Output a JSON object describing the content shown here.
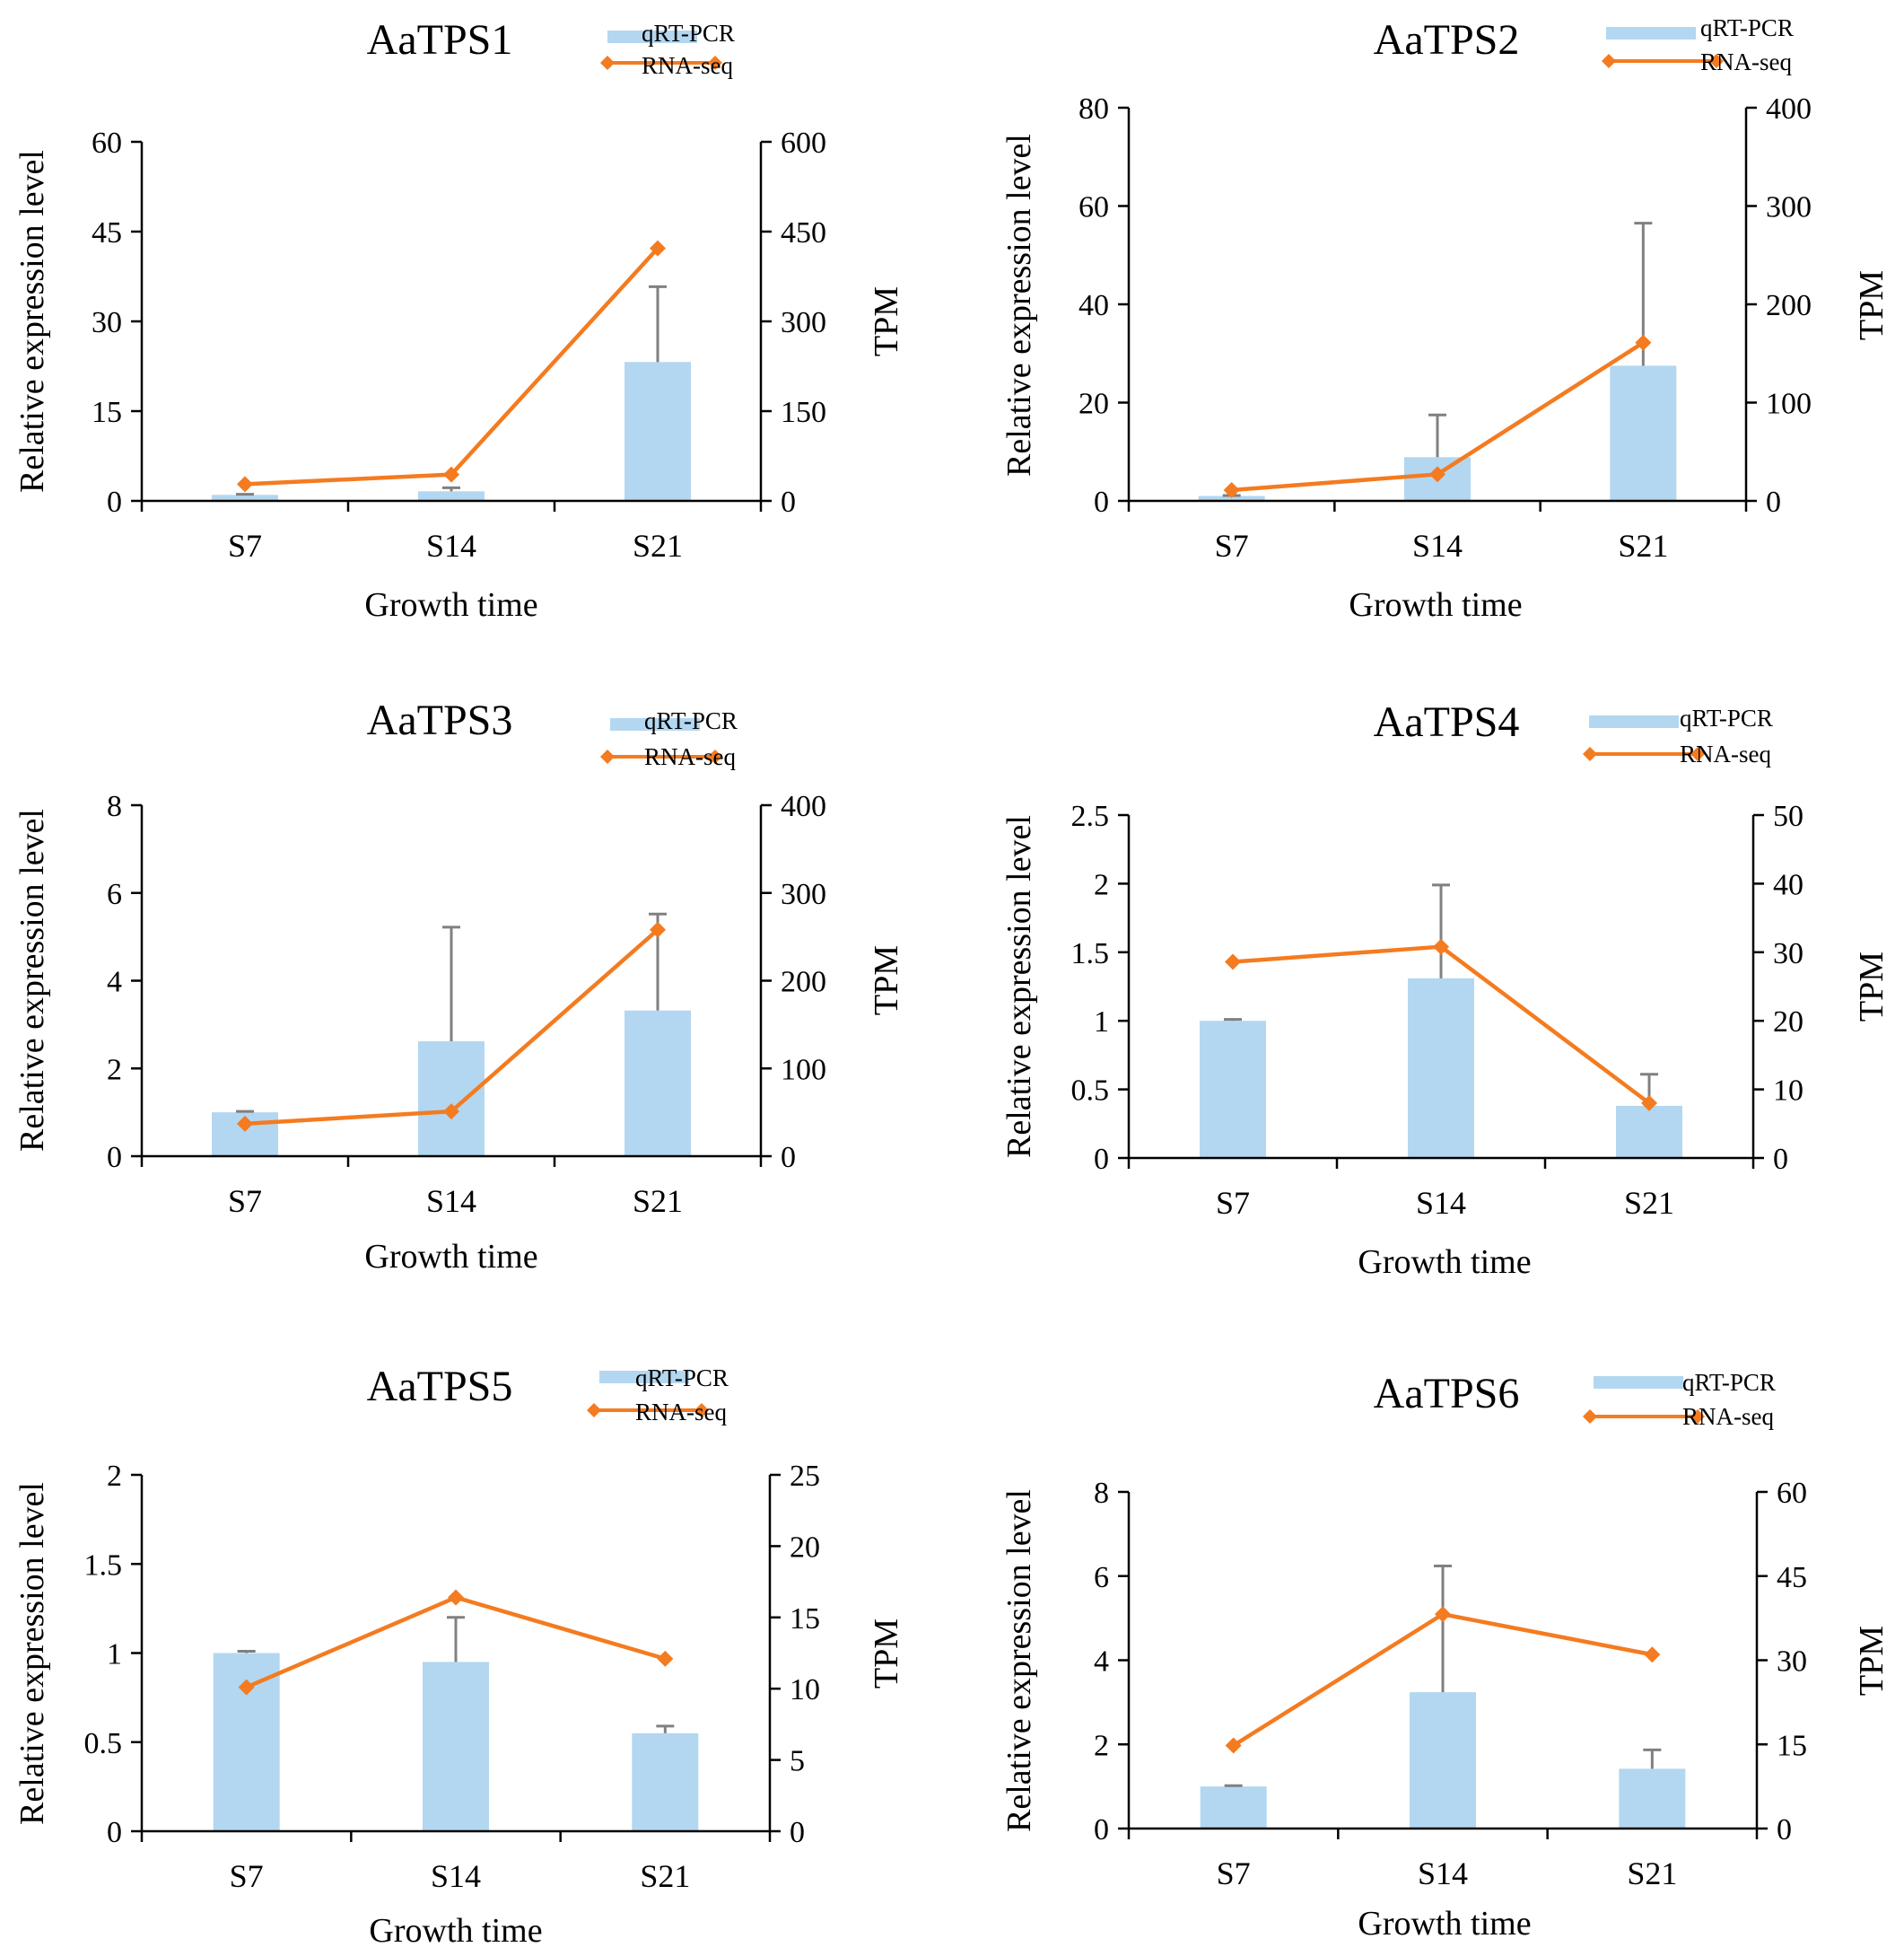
{
  "figure": {
    "colors": {
      "bar": "#b3d7f0",
      "line": "#f47b20",
      "axis": "#000000",
      "error": "#808080"
    }
  },
  "chart_data": [
    {
      "type": "bar",
      "title": "AaTPS1",
      "categories": [
        "S7",
        "S14",
        "S21"
      ],
      "xlabel": "Growth time",
      "ylabel": "Relative expression level",
      "y2label": "TPM",
      "ylim": [
        0,
        60
      ],
      "yticks": [
        "0",
        "15",
        "30",
        "45",
        "60"
      ],
      "y2lim": [
        0,
        600
      ],
      "y2ticks": [
        "0",
        "150",
        "300",
        "450",
        "600"
      ],
      "legend": {
        "bar": "qRT-PCR",
        "line": "RNA-seq"
      },
      "series": [
        {
          "name": "qRT-PCR",
          "kind": "bar",
          "axis": "left",
          "values": [
            1.0,
            1.6,
            23.2
          ],
          "errors": [
            0.1,
            0.6,
            12.6
          ]
        },
        {
          "name": "RNA-seq",
          "kind": "line",
          "axis": "right",
          "values": [
            28,
            44,
            422
          ]
        }
      ]
    },
    {
      "type": "bar",
      "title": "AaTPS2",
      "categories": [
        "S7",
        "S14",
        "S21"
      ],
      "xlabel": "Growth time",
      "ylabel": "Relative expression level",
      "y2label": "TPM",
      "ylim": [
        0,
        80
      ],
      "yticks": [
        "0",
        "20",
        "40",
        "60",
        "80"
      ],
      "y2lim": [
        0,
        400
      ],
      "y2ticks": [
        "0",
        "100",
        "200",
        "300",
        "400"
      ],
      "legend": {
        "bar": "qRT-PCR",
        "line": "RNA-seq"
      },
      "series": [
        {
          "name": "qRT-PCR",
          "kind": "bar",
          "axis": "left",
          "values": [
            1.0,
            8.9,
            27.5
          ],
          "errors": [
            0.1,
            8.6,
            29.0
          ]
        },
        {
          "name": "RNA-seq",
          "kind": "line",
          "axis": "right",
          "values": [
            11,
            27,
            161
          ]
        }
      ]
    },
    {
      "type": "bar",
      "title": "AaTPS3",
      "categories": [
        "S7",
        "S14",
        "S21"
      ],
      "xlabel": "Growth time",
      "ylabel": "Relative expression level",
      "y2label": "TPM",
      "ylim": [
        0,
        8
      ],
      "yticks": [
        "0",
        "2",
        "4",
        "6",
        "8"
      ],
      "y2lim": [
        0,
        400
      ],
      "y2ticks": [
        "0",
        "100",
        "200",
        "300",
        "400"
      ],
      "legend": {
        "bar": "qRT-PCR",
        "line": "RNA-seq"
      },
      "series": [
        {
          "name": "qRT-PCR",
          "kind": "bar",
          "axis": "left",
          "values": [
            1.0,
            2.62,
            3.32
          ],
          "errors": [
            0.02,
            2.6,
            2.2
          ]
        },
        {
          "name": "RNA-seq",
          "kind": "line",
          "axis": "right",
          "values": [
            37,
            51,
            258
          ]
        }
      ]
    },
    {
      "type": "bar",
      "title": "AaTPS4",
      "categories": [
        "S7",
        "S14",
        "S21"
      ],
      "xlabel": "Growth time",
      "ylabel": "Relative expression level",
      "y2label": "TPM",
      "ylim": [
        0,
        2.5
      ],
      "yticks": [
        "0",
        "0.5",
        "1",
        "1.5",
        "2",
        "2.5"
      ],
      "y2lim": [
        0,
        50
      ],
      "y2ticks": [
        "0",
        "10",
        "20",
        "30",
        "40",
        "50"
      ],
      "legend": {
        "bar": "qRT-PCR",
        "line": "RNA-seq"
      },
      "series": [
        {
          "name": "qRT-PCR",
          "kind": "bar",
          "axis": "left",
          "values": [
            1.0,
            1.31,
            0.38
          ],
          "errors": [
            0.01,
            0.68,
            0.23
          ]
        },
        {
          "name": "RNA-seq",
          "kind": "line",
          "axis": "right",
          "values": [
            28.6,
            30.8,
            8.0
          ]
        }
      ]
    },
    {
      "type": "bar",
      "title": "AaTPS5",
      "categories": [
        "S7",
        "S14",
        "S21"
      ],
      "xlabel": "Growth time",
      "ylabel": "Relative expression level",
      "y2label": "TPM",
      "ylim": [
        0,
        2
      ],
      "yticks": [
        "0",
        "0.5",
        "1",
        "1.5",
        "2"
      ],
      "y2lim": [
        0,
        25
      ],
      "y2ticks": [
        "0",
        "5",
        "10",
        "15",
        "20",
        "25"
      ],
      "legend": {
        "bar": "qRT-PCR",
        "line": "RNA-seq"
      },
      "series": [
        {
          "name": "qRT-PCR",
          "kind": "bar",
          "axis": "left",
          "values": [
            1.0,
            0.95,
            0.55
          ],
          "errors": [
            0.01,
            0.25,
            0.04
          ]
        },
        {
          "name": "RNA-seq",
          "kind": "line",
          "axis": "right",
          "values": [
            10.1,
            16.4,
            12.1
          ]
        }
      ]
    },
    {
      "type": "bar",
      "title": "AaTPS6",
      "categories": [
        "S7",
        "S14",
        "S21"
      ],
      "xlabel": "Growth time",
      "ylabel": "Relative expression level",
      "y2label": "TPM",
      "ylim": [
        0,
        8
      ],
      "yticks": [
        "0",
        "2",
        "4",
        "6",
        "8"
      ],
      "y2lim": [
        0,
        60
      ],
      "y2ticks": [
        "0",
        "15",
        "30",
        "45",
        "60"
      ],
      "legend": {
        "bar": "qRT-PCR",
        "line": "RNA-seq"
      },
      "series": [
        {
          "name": "qRT-PCR",
          "kind": "bar",
          "axis": "left",
          "values": [
            1.0,
            3.24,
            1.42
          ],
          "errors": [
            0.02,
            3.0,
            0.45
          ]
        },
        {
          "name": "RNA-seq",
          "kind": "line",
          "axis": "right",
          "values": [
            14.8,
            38.2,
            31.0
          ]
        }
      ]
    }
  ]
}
